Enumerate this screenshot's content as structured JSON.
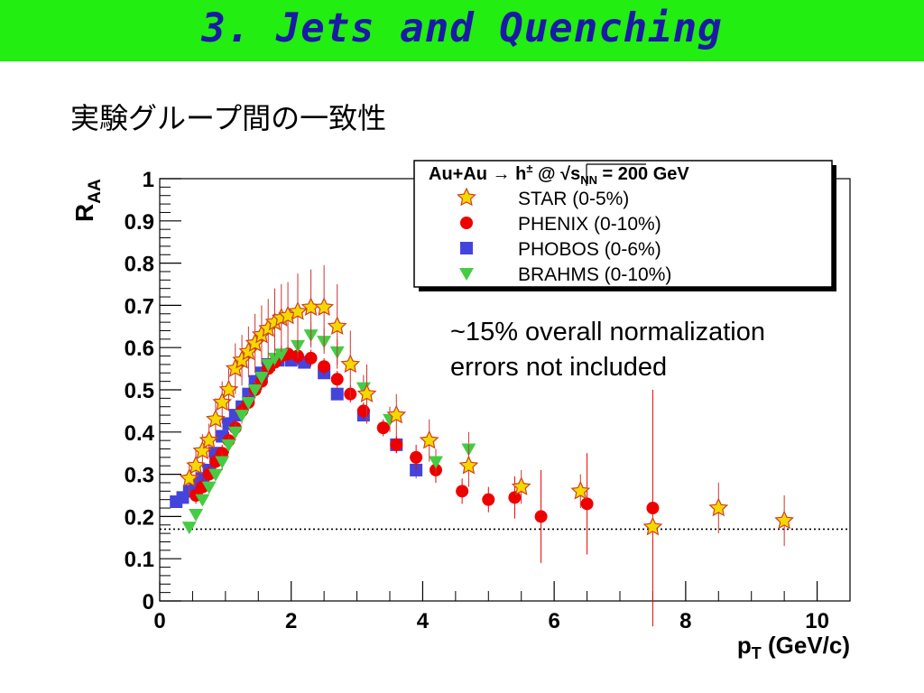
{
  "slide": {
    "title": "3. Jets and Quenching",
    "subtitle": "実験グループ間の一致性"
  },
  "colors": {
    "title_bar": "#22ee11",
    "title_text": "#1a1aa6",
    "star": "#f5d800",
    "phenix": "#ee0000",
    "phobos": "#4444dd",
    "brahms": "#44cc44",
    "error_bar": "#cc3333"
  },
  "chart_data": {
    "type": "scatter",
    "xlabel_main": "p",
    "xlabel_sub": "T",
    "xlabel_unit": "(GeV/c)",
    "ylabel_main": "R",
    "ylabel_sub": "AA",
    "xlim": [
      0,
      10.5
    ],
    "ylim": [
      0,
      1
    ],
    "x_ticks": [
      "0",
      "2",
      "4",
      "6",
      "8",
      "10"
    ],
    "y_ticks": [
      "0",
      "0.1",
      "0.2",
      "0.3",
      "0.4",
      "0.5",
      "0.6",
      "0.7",
      "0.8",
      "0.9",
      "1"
    ],
    "reference_line": 0.17,
    "legend": {
      "header_pre": "Au+Au → h",
      "header_sup": "±",
      "header_mid": " @ √s",
      "header_sub": "NN",
      "header_post": " = 200 GeV",
      "position": "top-right"
    },
    "annotation_line1": "~15% overall normalization",
    "annotation_line2": " errors not included",
    "series": [
      {
        "name": "STAR (0-5%)",
        "marker": "star",
        "points": [
          {
            "x": 0.45,
            "y": 0.29,
            "err": 0.04
          },
          {
            "x": 0.55,
            "y": 0.32,
            "err": 0.04
          },
          {
            "x": 0.65,
            "y": 0.355,
            "err": 0.04
          },
          {
            "x": 0.75,
            "y": 0.38,
            "err": 0.04
          },
          {
            "x": 0.85,
            "y": 0.43,
            "err": 0.05
          },
          {
            "x": 0.95,
            "y": 0.47,
            "err": 0.05
          },
          {
            "x": 1.05,
            "y": 0.5,
            "err": 0.05
          },
          {
            "x": 1.15,
            "y": 0.55,
            "err": 0.06
          },
          {
            "x": 1.25,
            "y": 0.57,
            "err": 0.06
          },
          {
            "x": 1.35,
            "y": 0.59,
            "err": 0.06
          },
          {
            "x": 1.45,
            "y": 0.61,
            "err": 0.07
          },
          {
            "x": 1.55,
            "y": 0.63,
            "err": 0.07
          },
          {
            "x": 1.65,
            "y": 0.645,
            "err": 0.07
          },
          {
            "x": 1.75,
            "y": 0.66,
            "err": 0.08
          },
          {
            "x": 1.85,
            "y": 0.67,
            "err": 0.08
          },
          {
            "x": 1.95,
            "y": 0.675,
            "err": 0.08
          },
          {
            "x": 2.1,
            "y": 0.685,
            "err": 0.09
          },
          {
            "x": 2.3,
            "y": 0.695,
            "err": 0.09
          },
          {
            "x": 2.5,
            "y": 0.695,
            "err": 0.1
          },
          {
            "x": 2.7,
            "y": 0.65,
            "err": 0.1
          },
          {
            "x": 2.9,
            "y": 0.56,
            "err": 0.08
          },
          {
            "x": 3.15,
            "y": 0.49,
            "err": 0.07
          },
          {
            "x": 3.6,
            "y": 0.44,
            "err": 0.05
          },
          {
            "x": 4.1,
            "y": 0.38,
            "err": 0.05
          },
          {
            "x": 4.7,
            "y": 0.32,
            "err": 0.05
          },
          {
            "x": 5.5,
            "y": 0.27,
            "err": 0.04
          },
          {
            "x": 6.4,
            "y": 0.26,
            "err": 0.04
          },
          {
            "x": 7.5,
            "y": 0.175,
            "err": 0.03
          },
          {
            "x": 8.5,
            "y": 0.22,
            "err": 0.06
          },
          {
            "x": 9.5,
            "y": 0.19,
            "err": 0.06
          }
        ]
      },
      {
        "name": "PHENIX (0-10%)",
        "marker": "circle",
        "points": [
          {
            "x": 0.55,
            "y": 0.25,
            "err": 0.02
          },
          {
            "x": 0.65,
            "y": 0.27,
            "err": 0.02
          },
          {
            "x": 0.75,
            "y": 0.3,
            "err": 0.02
          },
          {
            "x": 0.85,
            "y": 0.33,
            "err": 0.02
          },
          {
            "x": 0.95,
            "y": 0.35,
            "err": 0.02
          },
          {
            "x": 1.05,
            "y": 0.38,
            "err": 0.02
          },
          {
            "x": 1.15,
            "y": 0.41,
            "err": 0.02
          },
          {
            "x": 1.25,
            "y": 0.45,
            "err": 0.02
          },
          {
            "x": 1.35,
            "y": 0.47,
            "err": 0.02
          },
          {
            "x": 1.45,
            "y": 0.5,
            "err": 0.02
          },
          {
            "x": 1.55,
            "y": 0.52,
            "err": 0.02
          },
          {
            "x": 1.65,
            "y": 0.55,
            "err": 0.02
          },
          {
            "x": 1.75,
            "y": 0.565,
            "err": 0.02
          },
          {
            "x": 1.85,
            "y": 0.58,
            "err": 0.02
          },
          {
            "x": 1.95,
            "y": 0.585,
            "err": 0.02
          },
          {
            "x": 2.1,
            "y": 0.58,
            "err": 0.02
          },
          {
            "x": 2.3,
            "y": 0.575,
            "err": 0.02
          },
          {
            "x": 2.5,
            "y": 0.555,
            "err": 0.02
          },
          {
            "x": 2.7,
            "y": 0.525,
            "err": 0.02
          },
          {
            "x": 2.9,
            "y": 0.49,
            "err": 0.02
          },
          {
            "x": 3.1,
            "y": 0.45,
            "err": 0.02
          },
          {
            "x": 3.4,
            "y": 0.41,
            "err": 0.02
          },
          {
            "x": 3.6,
            "y": 0.37,
            "err": 0.02
          },
          {
            "x": 3.9,
            "y": 0.34,
            "err": 0.03
          },
          {
            "x": 4.2,
            "y": 0.31,
            "err": 0.03
          },
          {
            "x": 4.6,
            "y": 0.26,
            "err": 0.03
          },
          {
            "x": 5.0,
            "y": 0.24,
            "err": 0.03
          },
          {
            "x": 5.4,
            "y": 0.245,
            "err": 0.05
          },
          {
            "x": 5.8,
            "y": 0.2,
            "err": 0.11
          },
          {
            "x": 6.5,
            "y": 0.23,
            "err": 0.12
          },
          {
            "x": 7.5,
            "y": 0.22,
            "err": 0.28
          }
        ]
      },
      {
        "name": "PHOBOS (0-6%)",
        "marker": "square",
        "points": [
          {
            "x": 0.25,
            "y": 0.235,
            "err": 0.01
          },
          {
            "x": 0.35,
            "y": 0.245,
            "err": 0.01
          },
          {
            "x": 0.45,
            "y": 0.26,
            "err": 0.01
          },
          {
            "x": 0.55,
            "y": 0.275,
            "err": 0.01
          },
          {
            "x": 0.65,
            "y": 0.29,
            "err": 0.01
          },
          {
            "x": 0.75,
            "y": 0.31,
            "err": 0.01
          },
          {
            "x": 0.85,
            "y": 0.35,
            "err": 0.01
          },
          {
            "x": 0.95,
            "y": 0.39,
            "err": 0.01
          },
          {
            "x": 1.05,
            "y": 0.42,
            "err": 0.01
          },
          {
            "x": 1.15,
            "y": 0.44,
            "err": 0.01
          },
          {
            "x": 1.25,
            "y": 0.46,
            "err": 0.01
          },
          {
            "x": 1.35,
            "y": 0.49,
            "err": 0.01
          },
          {
            "x": 1.45,
            "y": 0.52,
            "err": 0.01
          },
          {
            "x": 1.55,
            "y": 0.54,
            "err": 0.01
          },
          {
            "x": 1.65,
            "y": 0.56,
            "err": 0.01
          },
          {
            "x": 1.8,
            "y": 0.57,
            "err": 0.01
          },
          {
            "x": 2.0,
            "y": 0.57,
            "err": 0.01
          },
          {
            "x": 2.2,
            "y": 0.565,
            "err": 0.01
          },
          {
            "x": 2.5,
            "y": 0.54,
            "err": 0.01
          },
          {
            "x": 2.7,
            "y": 0.49,
            "err": 0.01
          },
          {
            "x": 3.1,
            "y": 0.44,
            "err": 0.01
          },
          {
            "x": 3.6,
            "y": 0.37,
            "err": 0.02
          },
          {
            "x": 3.9,
            "y": 0.31,
            "err": 0.02
          }
        ]
      },
      {
        "name": "BRAHMS (0-10%)",
        "marker": "triangle",
        "points": [
          {
            "x": 0.45,
            "y": 0.175,
            "err": 0.01
          },
          {
            "x": 0.55,
            "y": 0.205,
            "err": 0.01
          },
          {
            "x": 0.65,
            "y": 0.24,
            "err": 0.01
          },
          {
            "x": 0.75,
            "y": 0.27,
            "err": 0.01
          },
          {
            "x": 0.85,
            "y": 0.3,
            "err": 0.01
          },
          {
            "x": 0.95,
            "y": 0.33,
            "err": 0.02
          },
          {
            "x": 1.05,
            "y": 0.37,
            "err": 0.02
          },
          {
            "x": 1.15,
            "y": 0.4,
            "err": 0.02
          },
          {
            "x": 1.25,
            "y": 0.44,
            "err": 0.02
          },
          {
            "x": 1.35,
            "y": 0.47,
            "err": 0.02
          },
          {
            "x": 1.45,
            "y": 0.5,
            "err": 0.02
          },
          {
            "x": 1.55,
            "y": 0.53,
            "err": 0.02
          },
          {
            "x": 1.65,
            "y": 0.56,
            "err": 0.02
          },
          {
            "x": 1.75,
            "y": 0.575,
            "err": 0.02
          },
          {
            "x": 1.85,
            "y": 0.585,
            "err": 0.02
          },
          {
            "x": 2.1,
            "y": 0.605,
            "err": 0.03
          },
          {
            "x": 2.3,
            "y": 0.63,
            "err": 0.03
          },
          {
            "x": 2.5,
            "y": 0.615,
            "err": 0.03
          },
          {
            "x": 2.7,
            "y": 0.59,
            "err": 0.03
          },
          {
            "x": 3.1,
            "y": 0.505,
            "err": 0.03
          },
          {
            "x": 3.5,
            "y": 0.43,
            "err": 0.03
          },
          {
            "x": 4.2,
            "y": 0.33,
            "err": 0.03
          },
          {
            "x": 4.7,
            "y": 0.36,
            "err": 0.04
          }
        ]
      }
    ]
  }
}
